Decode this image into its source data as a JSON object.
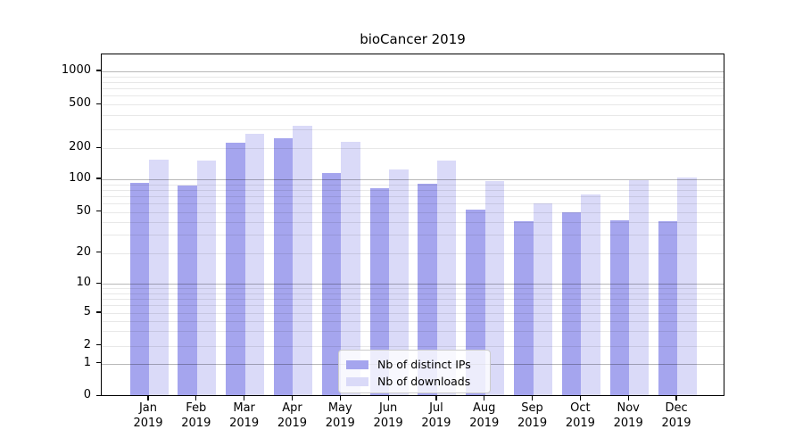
{
  "chart_data": {
    "type": "bar",
    "title": "bioCancer 2019",
    "categories": [
      "Jan 2019",
      "Feb 2019",
      "Mar 2019",
      "Apr 2019",
      "May 2019",
      "Jun 2019",
      "Jul 2019",
      "Aug 2019",
      "Sep 2019",
      "Oct 2019",
      "Nov 2019",
      "Dec 2019"
    ],
    "series": [
      {
        "name": "Nb of distinct IPs",
        "color": "#a5a5ee",
        "values": [
          90,
          85,
          215,
          240,
          110,
          80,
          88,
          51,
          39,
          48,
          40,
          39
        ]
      },
      {
        "name": "Nb of downloads",
        "color": "#dadaf8",
        "values": [
          150,
          145,
          260,
          310,
          220,
          120,
          145,
          92,
          58,
          70,
          95,
          101
        ]
      }
    ],
    "xlabel": "",
    "ylabel": "",
    "yscale": "symlog",
    "yticks": [
      0,
      1,
      2,
      5,
      10,
      20,
      50,
      100,
      200,
      500,
      1000
    ],
    "ylim": [
      0,
      1400
    ],
    "grid": "horizontal major and minor gridlines, drawn over bars",
    "legend_position": "inside lower-center of plot",
    "background_color": "#ffffff",
    "gridline_major_color": "#b8b8b8",
    "gridline_minor_color": "#e8e8e8"
  }
}
